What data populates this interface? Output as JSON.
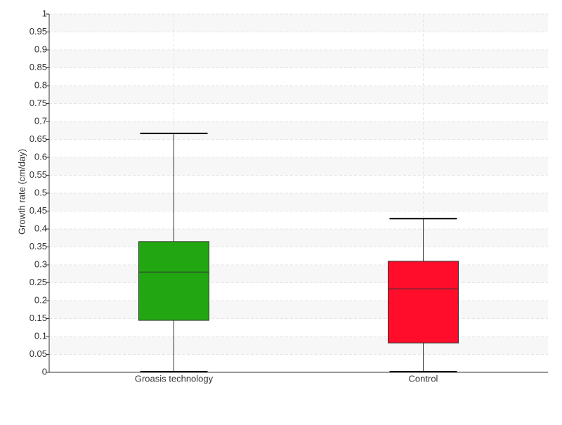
{
  "chart_data": {
    "type": "box",
    "y_label": "Growth rate (cm/day)",
    "categories": [
      "Groasis technology",
      "Control"
    ],
    "boxes": [
      {
        "min": 0,
        "q1": 0.145,
        "median": 0.28,
        "q3": 0.365,
        "max": 0.667,
        "color": "#22a611"
      },
      {
        "min": 0,
        "q1": 0.082,
        "median": 0.233,
        "q3": 0.31,
        "max": 0.429,
        "color": "#ff0d2b"
      }
    ],
    "ylim": [
      0,
      1
    ],
    "yticks": [
      0,
      0.05,
      0.1,
      0.15,
      0.2,
      0.25,
      0.3,
      0.35,
      0.4,
      0.45,
      0.5,
      0.55,
      0.6,
      0.65,
      0.7,
      0.75,
      0.8,
      0.85,
      0.9,
      0.95,
      1
    ],
    "grid": true
  }
}
